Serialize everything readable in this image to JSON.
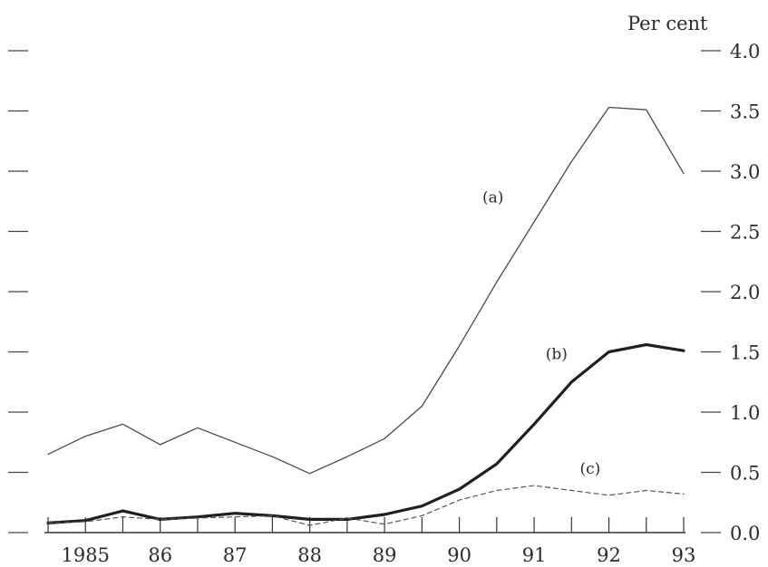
{
  "chart_data": {
    "type": "line",
    "title": "",
    "xlabel": "",
    "ylabel": "Per cent",
    "ylim": [
      0.0,
      4.0
    ],
    "yticks": [
      "0.0",
      "0.5",
      "1.0",
      "1.5",
      "2.0",
      "2.5",
      "3.0",
      "3.5",
      "4.0"
    ],
    "xtick_labels": [
      {
        "x": 1985,
        "label": "1985"
      },
      {
        "x": 1986,
        "label": "86"
      },
      {
        "x": 1987,
        "label": "87"
      },
      {
        "x": 1988,
        "label": "88"
      },
      {
        "x": 1989,
        "label": "89"
      },
      {
        "x": 1990,
        "label": "90"
      },
      {
        "x": 1991,
        "label": "91"
      },
      {
        "x": 1992,
        "label": "92"
      },
      {
        "x": 1993,
        "label": "93"
      }
    ],
    "xlim": [
      1984.5,
      1993.0
    ],
    "grid": false,
    "legend": "none",
    "series": [
      {
        "name": "(a)",
        "style": "thin-solid",
        "x": [
          1984.5,
          1985.0,
          1985.5,
          1986.0,
          1986.5,
          1987.0,
          1987.5,
          1988.0,
          1988.5,
          1989.0,
          1989.5,
          1990.0,
          1990.5,
          1991.0,
          1991.5,
          1992.0,
          1992.5,
          1993.0
        ],
        "values": [
          0.65,
          0.8,
          0.9,
          0.73,
          0.87,
          0.75,
          0.63,
          0.49,
          0.63,
          0.78,
          1.05,
          1.55,
          2.08,
          2.58,
          3.08,
          3.53,
          3.51,
          2.98
        ]
      },
      {
        "name": "(b)",
        "style": "thick-solid",
        "x": [
          1984.5,
          1985.0,
          1985.5,
          1986.0,
          1986.5,
          1987.0,
          1987.5,
          1988.0,
          1988.5,
          1989.0,
          1989.5,
          1990.0,
          1990.5,
          1991.0,
          1991.5,
          1992.0,
          1992.5,
          1993.0
        ],
        "values": [
          0.08,
          0.1,
          0.18,
          0.11,
          0.13,
          0.16,
          0.14,
          0.11,
          0.11,
          0.15,
          0.22,
          0.36,
          0.57,
          0.9,
          1.25,
          1.5,
          1.56,
          1.51
        ]
      },
      {
        "name": "(c)",
        "style": "dashed",
        "x": [
          1984.5,
          1985.0,
          1985.5,
          1986.0,
          1986.5,
          1987.0,
          1987.5,
          1988.0,
          1988.5,
          1989.0,
          1989.5,
          1990.0,
          1990.5,
          1991.0,
          1991.5,
          1992.0,
          1992.5,
          1993.0
        ],
        "values": [
          0.08,
          0.09,
          0.13,
          0.11,
          0.12,
          0.13,
          0.14,
          0.06,
          0.12,
          0.07,
          0.14,
          0.27,
          0.35,
          0.39,
          0.35,
          0.31,
          0.35,
          0.32
        ]
      }
    ]
  }
}
